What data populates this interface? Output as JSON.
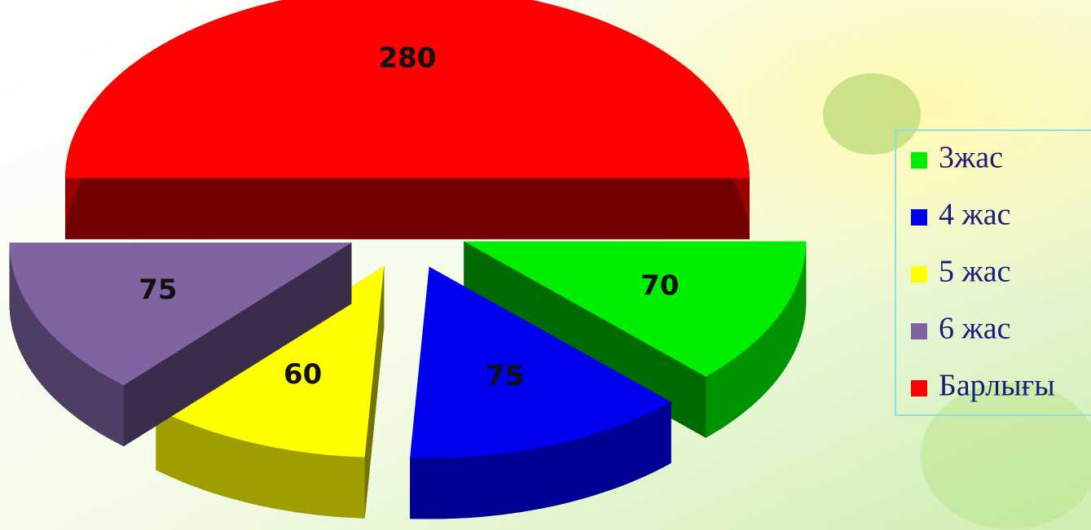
{
  "chart_data": {
    "type": "pie",
    "categories": [
      "3жас",
      "4 жас",
      "5 жас",
      "6 жас",
      "Барлығы"
    ],
    "values": [
      70,
      75,
      60,
      75,
      280
    ],
    "colors": [
      "#00ee00",
      "#0000ee",
      "#ffff00",
      "#8064a2",
      "#ff0000"
    ],
    "legend": "right"
  }
}
